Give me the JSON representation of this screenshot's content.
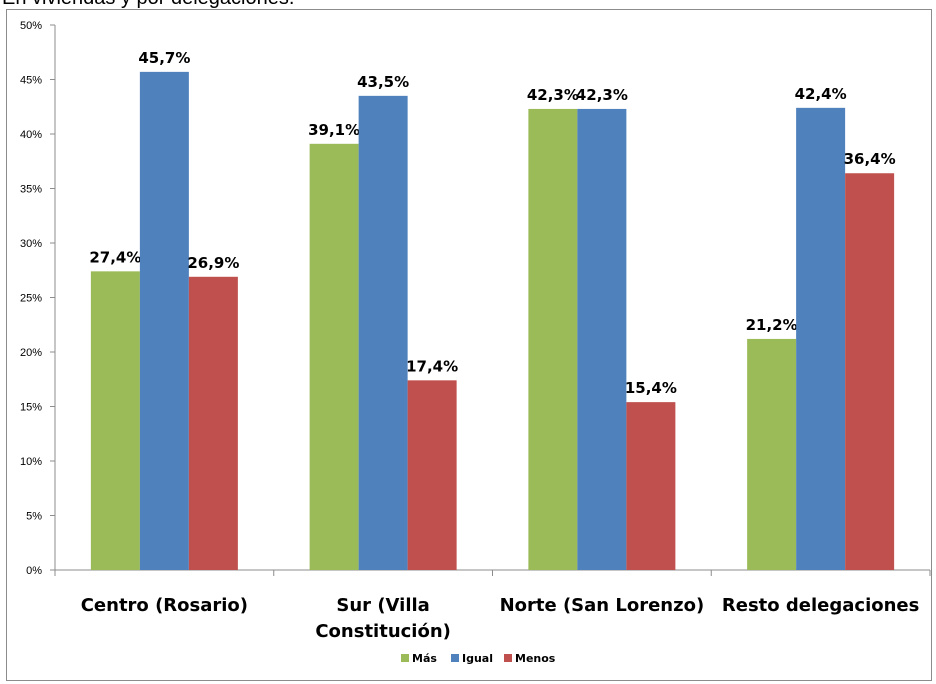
{
  "caption": "En viviendas y por delegaciones.",
  "colors": {
    "mas": "#9bbb59",
    "igual": "#4f81bd",
    "menos": "#c0504d",
    "axis": "#8c8c8c"
  },
  "chart_data": {
    "type": "bar",
    "title": "",
    "xlabel": "",
    "ylabel": "",
    "ylim": [
      0,
      50
    ],
    "y_ticks": [
      "0%",
      "5%",
      "10%",
      "15%",
      "20%",
      "25%",
      "30%",
      "35%",
      "40%",
      "45%",
      "50%"
    ],
    "grid": false,
    "legend_position": "bottom",
    "categories": [
      [
        "Centro (Rosario)"
      ],
      [
        "Sur (Villa",
        "Constitución)"
      ],
      [
        "Norte (San Lorenzo)"
      ],
      [
        "Resto delegaciones"
      ]
    ],
    "series": [
      {
        "name": "Más",
        "values": [
          27.4,
          39.1,
          42.3,
          21.2
        ],
        "labels": [
          "27,4%",
          "39,1%",
          "42,3%",
          "21,2%"
        ]
      },
      {
        "name": "Igual",
        "values": [
          45.7,
          43.5,
          42.3,
          42.4
        ],
        "labels": [
          "45,7%",
          "43,5%",
          "42,3%",
          "42,4%"
        ]
      },
      {
        "name": "Menos",
        "values": [
          26.9,
          17.4,
          15.4,
          36.4
        ],
        "labels": [
          "26,9%",
          "17,4%",
          "15,4%",
          "36,4%"
        ]
      }
    ]
  }
}
